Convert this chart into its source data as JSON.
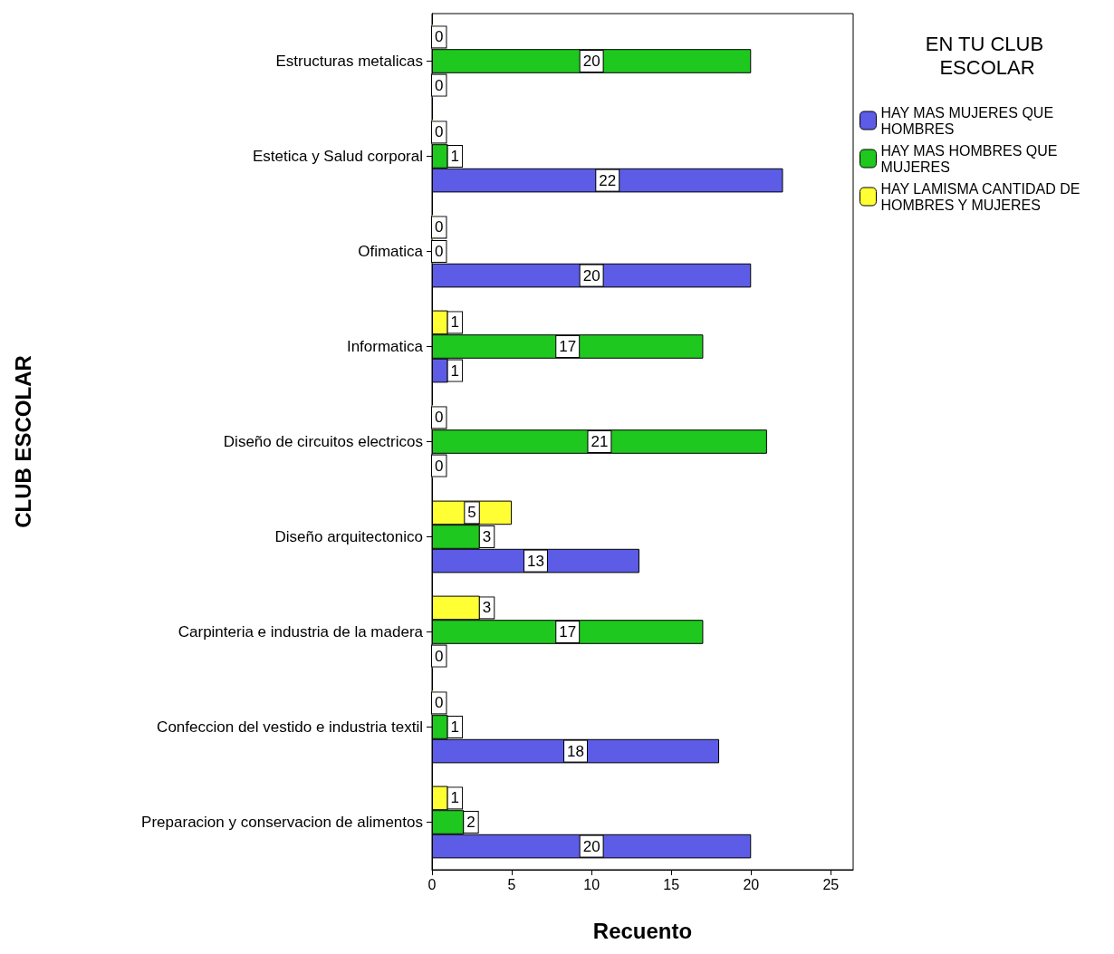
{
  "chart_data": {
    "type": "bar",
    "orientation": "horizontal",
    "xlabel": "Recuento",
    "ylabel": "CLUB ESCOLAR",
    "legend_title": "EN TU CLUB ESCOLAR",
    "legend": "top right",
    "categories": [
      "Estructuras metalicas",
      "Estetica y Salud corporal",
      "Ofimatica",
      "Informatica",
      "Diseño de circuitos electricos",
      "Diseño arquitectonico",
      "Carpinteria e industria de la madera",
      "Confeccion del vestido e industria textil",
      "Preparacion y conservacion de alimentos"
    ],
    "series": [
      {
        "name": "HAY MAS MUJERES QUE HOMBRES",
        "color": "#5c5ce6",
        "values": [
          0,
          22,
          20,
          1,
          0,
          13,
          0,
          18,
          20
        ]
      },
      {
        "name": "HAY MAS HOMBRES QUE MUJERES",
        "color": "#1ec81e",
        "values": [
          20,
          1,
          0,
          17,
          21,
          3,
          17,
          1,
          2
        ]
      },
      {
        "name": "HAY LAMISMA CANTIDAD DE HOMBRES Y MUJERES",
        "color": "#ffff33",
        "values": [
          0,
          0,
          0,
          1,
          0,
          5,
          3,
          0,
          1
        ]
      }
    ],
    "xlim": [
      0,
      26.4
    ],
    "xticks": [
      0,
      5,
      10,
      15,
      20,
      25
    ],
    "grid": false,
    "data_labels": true
  }
}
